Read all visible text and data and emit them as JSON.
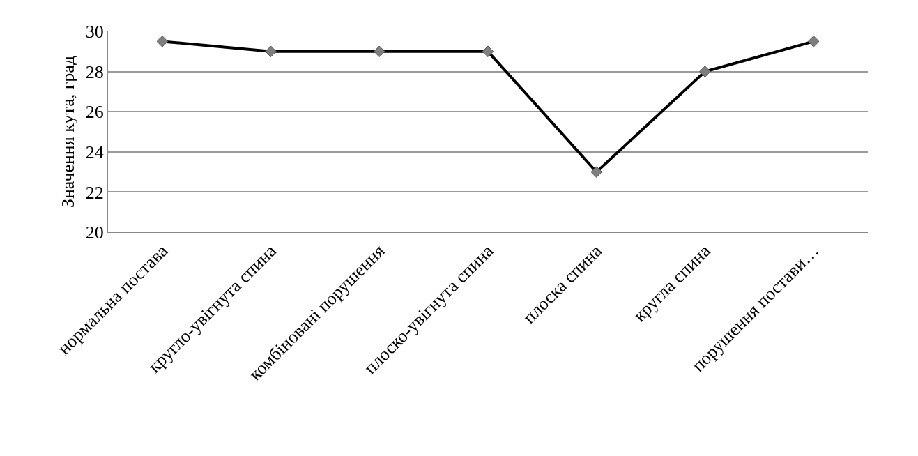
{
  "chart_data": {
    "type": "line",
    "ylabel": "Значення кута, град",
    "categories": [
      "нормальна постава",
      "кругло-увігнута спина",
      "комбіновані порушення",
      "плоско-увігнута спина",
      "плоска спина",
      "кругла спина",
      "порушення постави…"
    ],
    "series": [
      {
        "color": "#000000",
        "values": [
          29.5,
          29,
          29,
          29,
          23,
          28,
          29.5
        ]
      }
    ],
    "ylim": [
      20,
      30
    ],
    "yticks": [
      20,
      22,
      24,
      26,
      28,
      30
    ],
    "grid": "y",
    "legend": false,
    "marker": "diamond",
    "line_style": "solid"
  }
}
